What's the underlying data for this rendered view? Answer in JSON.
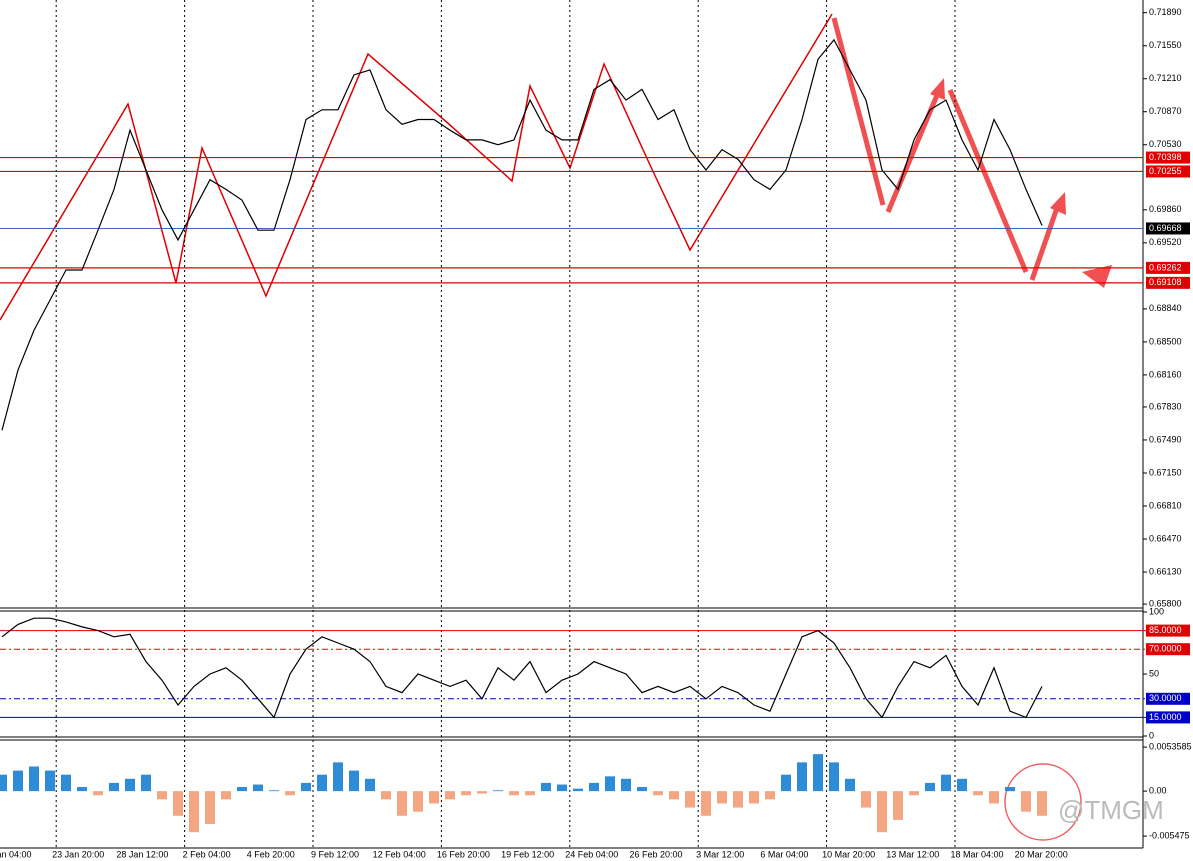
{
  "chart_data": [
    {
      "type": "line",
      "color": "#000000",
      "values": [
        0.6759,
        0.6821,
        0.6862,
        0.6893,
        0.6924,
        0.6924,
        0.6965,
        0.7007,
        0.7068,
        0.7027,
        0.6986,
        0.6955,
        0.6986,
        0.7017,
        0.7007,
        0.6996,
        0.6965,
        0.6965,
        0.7017,
        0.7079,
        0.7089,
        0.7089,
        0.7125,
        0.713,
        0.7089,
        0.7074,
        0.7079,
        0.7079,
        0.7068,
        0.7058,
        0.7058,
        0.7053,
        0.7058,
        0.7099,
        0.7068,
        0.7058,
        0.7058,
        0.711,
        0.712,
        0.7099,
        0.711,
        0.7079,
        0.7089,
        0.7048,
        0.7027,
        0.7048,
        0.7038,
        0.7017,
        0.7007,
        0.7027,
        0.7079,
        0.7141,
        0.7161,
        0.713,
        0.7099,
        0.7027,
        0.7007,
        0.7058,
        0.7089,
        0.7099,
        0.7058,
        0.7027,
        0.7079,
        0.7048,
        0.7007,
        0.697
      ],
      "ylim": [
        0.6577,
        0.72
      ],
      "yticks": [
        {
          "value": 0.7189,
          "label": "0.71890"
        },
        {
          "value": 0.7155,
          "label": "0.71550"
        },
        {
          "value": 0.7121,
          "label": "0.71210"
        },
        {
          "value": 0.7087,
          "label": "0.70870"
        },
        {
          "value": 0.7053,
          "label": "0.70530"
        },
        {
          "value": 0.6986,
          "label": "0.69860"
        },
        {
          "value": 0.6952,
          "label": "0.69520"
        },
        {
          "value": 0.6884,
          "label": "0.68840"
        },
        {
          "value": 0.685,
          "label": "0.68500"
        },
        {
          "value": 0.6816,
          "label": "0.68160"
        },
        {
          "value": 0.6783,
          "label": "0.67830"
        },
        {
          "value": 0.6749,
          "label": "0.67490"
        },
        {
          "value": 0.6715,
          "label": "0.67150"
        },
        {
          "value": 0.6681,
          "label": "0.66810"
        },
        {
          "value": 0.6647,
          "label": "0.66470"
        },
        {
          "value": 0.6613,
          "label": "0.66130"
        },
        {
          "value": 0.658,
          "label": "0.65800"
        }
      ],
      "price_tags": [
        {
          "value": 0.70398,
          "label": "0.70398",
          "color": "#e00000"
        },
        {
          "value": 0.70255,
          "label": "0.70255",
          "color": "#e00000"
        },
        {
          "value": 0.69668,
          "label": "0.69668",
          "color": "#000000"
        },
        {
          "value": 0.69262,
          "label": "0.69262",
          "color": "#e00000"
        },
        {
          "value": 0.69108,
          "label": "0.69108",
          "color": "#e00000"
        }
      ],
      "xlabels": [
        "an 04:00",
        "23 Jan 20:00",
        "28 Jan 12:00",
        "2 Feb 04:00",
        "4 Feb 20:00",
        "9 Feb 12:00",
        "12 Feb 04:00",
        "16 Feb 20:00",
        "19 Feb 12:00",
        "24 Feb 04:00",
        "26 Feb 20:00",
        "3 Mar 12:00",
        "6 Mar 04:00",
        "10 Mar 20:00",
        "13 Mar 12:00",
        "18 Mar 04:00",
        "20 Mar 20:00"
      ]
    },
    {
      "type": "line",
      "color": "#000000",
      "values": [
        80,
        90,
        95,
        95,
        92,
        88,
        85,
        80,
        82,
        60,
        45,
        25,
        40,
        50,
        55,
        45,
        30,
        15,
        50,
        70,
        80,
        75,
        70,
        60,
        40,
        35,
        50,
        45,
        40,
        45,
        30,
        55,
        45,
        60,
        35,
        45,
        50,
        60,
        55,
        50,
        35,
        40,
        35,
        40,
        30,
        40,
        35,
        25,
        20,
        50,
        80,
        85,
        75,
        55,
        30,
        15,
        40,
        60,
        55,
        65,
        40,
        25,
        55,
        20,
        15,
        40
      ],
      "ylim": [
        0,
        100
      ],
      "yticks": [
        100,
        {
          "value": 85,
          "label": "85.0000",
          "color": "#e00000"
        },
        {
          "value": 70,
          "label": "70.0000",
          "color": "#e00000"
        },
        50,
        {
          "value": 30,
          "label": "30.0000",
          "color": "#0000cc"
        },
        {
          "value": 15,
          "label": "15.0000",
          "color": "#0000cc"
        },
        0
      ]
    },
    {
      "type": "bar",
      "color": "#2e8bd6",
      "negative_color": "#f4a582",
      "values": [
        0.002,
        0.0025,
        0.003,
        0.0025,
        0.002,
        0.0005,
        -0.0005,
        0.001,
        0.0015,
        0.002,
        -0.001,
        -0.003,
        -0.005,
        -0.004,
        -0.001,
        0.0005,
        0.0008,
        0.0001,
        -0.0005,
        0.001,
        0.002,
        0.0035,
        0.0025,
        0.0015,
        -0.001,
        -0.003,
        -0.0025,
        -0.0015,
        -0.001,
        -0.0005,
        -0.0003,
        0.0001,
        -0.0005,
        -0.0005,
        0.001,
        0.0008,
        0.0003,
        0.001,
        0.0018,
        0.0015,
        0.0005,
        -0.0005,
        -0.001,
        -0.002,
        -0.003,
        -0.0015,
        -0.002,
        -0.0015,
        -0.001,
        0.002,
        0.0035,
        0.0045,
        0.0035,
        0.0015,
        -0.002,
        -0.005,
        -0.0035,
        -0.0005,
        0.001,
        0.002,
        0.0015,
        -0.0005,
        -0.0015,
        0.0005,
        -0.0025,
        -0.003
      ],
      "ylim": [
        -0.0068,
        0.0061
      ],
      "yticks": [
        {
          "value": 0.0053585,
          "label": "0.0053585"
        },
        {
          "value": 0,
          "label": "0.00"
        },
        {
          "value": -0.005475,
          "label": "-0.005475"
        }
      ]
    }
  ],
  "watermark": "@TMGM"
}
